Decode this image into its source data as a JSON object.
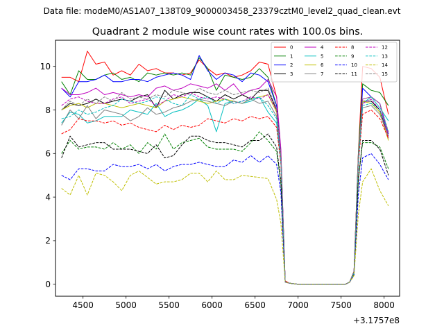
{
  "header": {
    "suptitle": "Data file: modeM0/AS1A07_138T09_9000003458_23379cztM0_level2_quad_clean.evt"
  },
  "chart_data": {
    "type": "line",
    "title": "Quadrant 2 module wise count rates with 100.0s bins.",
    "xlabel": "",
    "ylabel": "",
    "x_offset_label": "+3.1757e8",
    "xlim": [
      4180,
      8180
    ],
    "ylim": [
      -0.55,
      11.2
    ],
    "xticks": [
      4500,
      5000,
      5500,
      6000,
      6500,
      7000,
      7500,
      8000
    ],
    "yticks": [
      0,
      2,
      4,
      6,
      8,
      10
    ],
    "grid": false,
    "legend_position": "top-right",
    "x_raw": [
      4250,
      4350,
      4450,
      4550,
      4650,
      4750,
      4850,
      4950,
      5050,
      5150,
      5250,
      5350,
      5450,
      5550,
      5650,
      5750,
      5850,
      5950,
      6050,
      6150,
      6250,
      6350,
      6450,
      6550,
      6650,
      6750,
      6800,
      6850,
      6900,
      7000,
      7100,
      7200,
      7300,
      7400,
      7500,
      7550,
      7600,
      7650,
      7700,
      7750,
      7850,
      7950,
      8050
    ],
    "series": [
      {
        "name": "0",
        "color": "#ff0000",
        "dash": false,
        "values": [
          9.5,
          9.5,
          9.3,
          10.7,
          10.1,
          10.2,
          9.6,
          9.8,
          9.6,
          10.1,
          9.8,
          9.9,
          9.7,
          9.7,
          9.6,
          9.7,
          10.3,
          9.9,
          9.6,
          9.7,
          9.5,
          9.6,
          9.8,
          10.2,
          10.1,
          8.6,
          6.0,
          0.15,
          0.05,
          0.0,
          0.0,
          0.0,
          0.0,
          0.0,
          0.0,
          0.0,
          0.1,
          0.6,
          6.0,
          10.0,
          9.9,
          9.5,
          7.8
        ]
      },
      {
        "name": "1",
        "color": "#008000",
        "dash": false,
        "values": [
          9.3,
          8.7,
          9.8,
          9.4,
          9.4,
          9.6,
          9.7,
          9.4,
          9.5,
          9.3,
          9.7,
          9.6,
          9.7,
          9.6,
          9.7,
          9.6,
          10.4,
          9.9,
          8.9,
          9.6,
          9.5,
          9.4,
          9.5,
          9.9,
          9.5,
          8.2,
          6.0,
          0.1,
          0.05,
          0.0,
          0.0,
          0.0,
          0.0,
          0.0,
          0.0,
          0.0,
          0.1,
          0.6,
          6.0,
          9.2,
          8.9,
          8.8,
          8.2
        ]
      },
      {
        "name": "2",
        "color": "#0000ff",
        "dash": false,
        "values": [
          9.0,
          8.6,
          9.3,
          9.3,
          9.4,
          9.6,
          9.3,
          9.3,
          9.4,
          9.4,
          9.3,
          9.5,
          9.6,
          9.7,
          9.6,
          9.4,
          10.5,
          9.8,
          9.4,
          9.7,
          9.6,
          9.3,
          9.7,
          9.6,
          9.3,
          8.2,
          6.0,
          0.1,
          0.05,
          0.0,
          0.0,
          0.0,
          0.0,
          0.0,
          0.0,
          0.0,
          0.1,
          0.6,
          5.5,
          9.0,
          8.6,
          8.3,
          6.9
        ]
      },
      {
        "name": "3",
        "color": "#000000",
        "dash": false,
        "values": [
          8.0,
          8.3,
          8.2,
          8.3,
          8.5,
          8.3,
          8.4,
          8.5,
          8.4,
          8.6,
          8.7,
          8.1,
          8.9,
          8.5,
          8.7,
          8.8,
          8.8,
          8.6,
          8.4,
          8.7,
          8.5,
          8.7,
          8.5,
          8.9,
          8.9,
          8.0,
          5.8,
          0.1,
          0.05,
          0.0,
          0.0,
          0.0,
          0.0,
          0.0,
          0.0,
          0.0,
          0.1,
          0.6,
          5.8,
          8.4,
          8.4,
          8.0,
          6.8
        ]
      },
      {
        "name": "4",
        "color": "#bf00bf",
        "dash": false,
        "values": [
          9.0,
          8.7,
          8.7,
          8.8,
          9.0,
          8.7,
          8.8,
          8.7,
          8.6,
          8.7,
          8.6,
          9.0,
          9.1,
          8.9,
          9.0,
          9.2,
          9.1,
          9.0,
          9.2,
          8.9,
          9.2,
          8.7,
          8.9,
          9.0,
          9.4,
          8.6,
          6.2,
          0.1,
          0.05,
          0.0,
          0.0,
          0.0,
          0.0,
          0.0,
          0.0,
          0.0,
          0.1,
          0.6,
          5.9,
          8.5,
          8.6,
          8.3,
          6.7
        ]
      },
      {
        "name": "5",
        "color": "#00bfbf",
        "dash": false,
        "values": [
          7.4,
          7.9,
          7.8,
          7.4,
          7.5,
          7.7,
          7.7,
          7.7,
          8.0,
          7.9,
          7.8,
          8.3,
          7.7,
          7.9,
          8.0,
          8.2,
          8.5,
          8.2,
          7.0,
          8.3,
          8.4,
          8.3,
          8.4,
          8.6,
          7.9,
          7.4,
          5.6,
          0.1,
          0.05,
          0.0,
          0.0,
          0.0,
          0.0,
          0.0,
          0.0,
          0.0,
          0.1,
          0.5,
          5.6,
          8.3,
          8.6,
          8.1,
          7.5
        ]
      },
      {
        "name": "6",
        "color": "#bfbf00",
        "dash": false,
        "values": [
          8.0,
          8.2,
          8.3,
          8.1,
          8.3,
          8.3,
          8.2,
          8.1,
          8.2,
          8.3,
          8.2,
          8.1,
          8.4,
          8.5,
          8.6,
          8.5,
          8.4,
          8.3,
          8.4,
          8.5,
          8.4,
          8.3,
          8.5,
          8.6,
          8.7,
          7.9,
          5.7,
          0.1,
          0.05,
          0.0,
          0.0,
          0.0,
          0.0,
          0.0,
          0.0,
          0.0,
          0.1,
          0.6,
          5.8,
          8.4,
          8.3,
          7.9,
          6.6
        ]
      },
      {
        "name": "7",
        "color": "#808080",
        "dash": false,
        "values": [
          7.3,
          8.0,
          7.6,
          8.2,
          7.6,
          8.0,
          7.9,
          7.8,
          7.5,
          7.7,
          8.1,
          7.8,
          7.9,
          8.1,
          8.2,
          8.4,
          8.5,
          8.4,
          8.3,
          8.2,
          8.4,
          8.3,
          8.5,
          8.3,
          8.4,
          7.7,
          5.6,
          0.1,
          0.05,
          0.0,
          0.0,
          0.0,
          0.0,
          0.0,
          0.0,
          0.0,
          0.1,
          0.5,
          5.6,
          8.1,
          8.2,
          7.8,
          6.8
        ]
      },
      {
        "name": "8",
        "color": "#ff0000",
        "dash": true,
        "values": [
          6.9,
          7.1,
          7.6,
          7.5,
          7.5,
          7.4,
          7.5,
          7.3,
          7.4,
          7.2,
          7.1,
          7.0,
          7.3,
          7.1,
          7.3,
          7.2,
          7.3,
          7.6,
          7.5,
          7.4,
          7.6,
          7.5,
          7.7,
          7.6,
          7.7,
          7.2,
          5.5,
          0.1,
          0.05,
          0.0,
          0.0,
          0.0,
          0.0,
          0.0,
          0.0,
          0.0,
          0.1,
          0.5,
          5.5,
          7.8,
          8.0,
          7.6,
          6.7
        ]
      },
      {
        "name": "9",
        "color": "#008000",
        "dash": true,
        "values": [
          6.0,
          6.6,
          6.2,
          6.3,
          6.3,
          6.2,
          6.5,
          6.2,
          6.4,
          6.0,
          6.5,
          6.2,
          6.9,
          6.2,
          6.5,
          6.6,
          6.7,
          6.3,
          6.2,
          6.2,
          6.2,
          6.1,
          6.5,
          7.0,
          6.6,
          6.1,
          4.6,
          0.1,
          0.05,
          0.0,
          0.0,
          0.0,
          0.0,
          0.0,
          0.0,
          0.0,
          0.1,
          0.5,
          4.8,
          6.5,
          6.5,
          6.3,
          5.3
        ]
      },
      {
        "name": "10",
        "color": "#0000ff",
        "dash": true,
        "values": [
          5.0,
          4.8,
          5.3,
          5.3,
          5.2,
          5.2,
          5.5,
          5.4,
          5.4,
          5.5,
          5.3,
          5.5,
          5.2,
          5.4,
          5.5,
          5.5,
          5.6,
          5.5,
          5.4,
          5.4,
          5.7,
          5.6,
          5.9,
          5.6,
          5.9,
          5.5,
          4.2,
          0.1,
          0.05,
          0.0,
          0.0,
          0.0,
          0.0,
          0.0,
          0.0,
          0.0,
          0.1,
          0.4,
          4.1,
          5.8,
          6.0,
          5.5,
          4.8
        ]
      },
      {
        "name": "11",
        "color": "#000000",
        "dash": true,
        "values": [
          5.8,
          6.8,
          6.3,
          6.4,
          6.5,
          6.5,
          6.2,
          6.2,
          6.2,
          6.1,
          6.0,
          6.4,
          5.8,
          5.9,
          6.4,
          6.8,
          6.8,
          6.6,
          6.5,
          6.5,
          6.4,
          6.3,
          6.6,
          6.6,
          6.9,
          6.3,
          4.7,
          0.1,
          0.05,
          0.0,
          0.0,
          0.0,
          0.0,
          0.0,
          0.0,
          0.0,
          0.1,
          0.5,
          4.8,
          6.6,
          6.6,
          6.2,
          5.0
        ]
      },
      {
        "name": "12",
        "color": "#bf00bf",
        "dash": true,
        "values": [
          8.2,
          8.5,
          8.6,
          8.4,
          8.3,
          8.3,
          8.5,
          8.6,
          8.3,
          8.4,
          8.5,
          8.2,
          8.4,
          8.7,
          8.6,
          8.8,
          8.6,
          8.5,
          8.6,
          8.5,
          8.3,
          8.4,
          8.6,
          8.5,
          8.7,
          8.0,
          5.8,
          0.1,
          0.05,
          0.0,
          0.0,
          0.0,
          0.0,
          0.0,
          0.0,
          0.0,
          0.1,
          0.6,
          5.8,
          8.3,
          8.5,
          8.0,
          6.9
        ]
      },
      {
        "name": "13",
        "color": "#00bfbf",
        "dash": true,
        "values": [
          7.6,
          7.7,
          8.0,
          7.8,
          7.9,
          8.1,
          8.2,
          8.5,
          8.4,
          8.3,
          8.4,
          8.6,
          8.5,
          8.3,
          8.2,
          8.7,
          8.5,
          8.6,
          8.3,
          8.5,
          8.3,
          8.4,
          8.5,
          8.6,
          8.2,
          7.6,
          5.6,
          0.1,
          0.05,
          0.0,
          0.0,
          0.0,
          0.0,
          0.0,
          0.0,
          0.0,
          0.1,
          0.5,
          5.6,
          8.2,
          8.3,
          8.0,
          7.0
        ]
      },
      {
        "name": "14",
        "color": "#bfbf00",
        "dash": true,
        "values": [
          4.4,
          4.1,
          5.0,
          4.1,
          5.1,
          5.0,
          4.7,
          4.3,
          5.0,
          5.2,
          4.9,
          4.6,
          4.7,
          4.7,
          4.8,
          5.1,
          5.1,
          4.7,
          5.2,
          4.8,
          4.8,
          5.0,
          4.95,
          4.9,
          4.85,
          3.9,
          2.8,
          0.1,
          0.05,
          0.0,
          0.0,
          0.0,
          0.0,
          0.0,
          0.0,
          0.0,
          0.1,
          0.4,
          3.2,
          4.7,
          5.3,
          4.3,
          3.6
        ]
      },
      {
        "name": "15",
        "color": "#808080",
        "dash": true,
        "values": [
          8.0,
          8.4,
          8.2,
          8.5,
          8.3,
          8.6,
          8.4,
          8.8,
          8.5,
          8.6,
          8.5,
          8.7,
          8.6,
          8.9,
          8.8,
          8.7,
          9.0,
          8.8,
          8.7,
          8.9,
          8.7,
          8.8,
          8.9,
          8.8,
          9.0,
          8.1,
          5.9,
          0.1,
          0.05,
          0.0,
          0.0,
          0.0,
          0.0,
          0.0,
          0.0,
          0.0,
          0.1,
          0.6,
          5.9,
          8.5,
          8.6,
          8.3,
          7.0
        ]
      }
    ]
  }
}
